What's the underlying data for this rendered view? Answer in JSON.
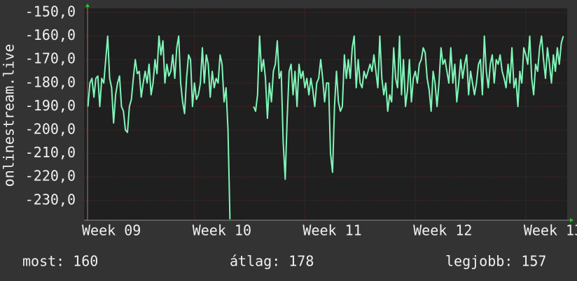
{
  "chart_data": {
    "type": "line",
    "y_label": "onlinestream.live",
    "x": [
      6,
      9,
      12,
      15,
      18,
      21,
      24,
      27,
      30,
      33,
      36,
      39,
      42,
      45,
      48,
      51,
      54,
      57,
      60,
      63,
      66,
      69,
      72,
      75,
      78,
      81,
      84,
      87,
      90,
      93,
      96,
      99,
      102,
      105,
      108,
      111,
      114,
      117,
      120,
      123,
      126,
      129,
      132,
      135,
      138,
      141,
      144,
      147,
      150,
      153,
      156,
      159,
      162,
      165,
      168,
      171,
      174,
      177,
      180,
      183,
      186,
      189,
      192,
      195,
      198,
      201,
      204,
      207,
      210,
      213,
      216,
      219,
      222,
      225,
      228,
      231,
      234,
      237,
      240,
      243,
      246,
      249,
      252,
      255,
      258,
      261,
      264,
      267,
      270,
      273,
      276,
      279,
      282,
      285,
      288,
      291,
      294,
      297,
      300,
      303,
      306,
      309,
      312,
      315,
      318,
      321,
      324,
      327,
      330,
      333,
      336,
      339,
      342,
      345,
      348,
      351,
      354,
      357,
      360,
      363,
      366,
      369,
      372,
      375,
      378,
      381,
      384,
      387,
      390,
      393,
      396,
      399,
      402,
      405,
      408,
      411,
      414,
      417,
      420,
      423,
      426,
      429,
      432,
      435,
      438,
      441,
      444,
      447,
      450,
      453,
      456,
      459,
      462,
      465,
      468,
      471,
      474,
      477,
      480,
      483,
      486,
      489,
      492,
      495,
      498,
      501,
      504,
      507,
      510,
      513,
      516,
      519,
      522,
      525,
      528,
      531,
      534,
      537,
      540,
      543,
      546,
      549,
      552,
      555,
      558,
      561,
      564,
      567,
      570,
      573,
      576,
      579,
      582,
      585,
      588,
      591,
      594,
      597,
      600,
      603,
      606,
      609,
      612,
      615,
      618,
      621,
      624,
      627,
      630,
      633,
      636,
      639,
      642,
      645,
      648,
      651,
      654,
      657,
      660,
      663,
      666,
      669,
      672,
      675,
      678,
      681,
      684,
      687,
      690,
      693,
      696,
      699,
      702,
      705,
      708,
      711,
      714,
      717,
      720,
      723,
      726,
      729
    ],
    "series": [
      {
        "name": "onlinestream.live",
        "color": "#80f5b8",
        "values": [
          -190,
          -180,
          -178,
          -186,
          -178,
          -177,
          -190,
          -178,
          -180,
          -170,
          -160,
          -178,
          -182,
          -197,
          -185,
          -180,
          -177,
          -190,
          -192,
          -200,
          -201,
          -190,
          -187,
          -178,
          -170,
          -176,
          -175,
          -186,
          -180,
          -175,
          -180,
          -172,
          -185,
          -180,
          -170,
          -176,
          -160,
          -168,
          -162,
          -180,
          -172,
          -177,
          -175,
          -168,
          -178,
          -165,
          -160,
          -180,
          -188,
          -193,
          -178,
          -168,
          -170,
          -190,
          -180,
          -187,
          -185,
          -180,
          -165,
          -180,
          -168,
          -172,
          -186,
          -175,
          -182,
          -178,
          -180,
          -168,
          -172,
          -188,
          -182,
          -200,
          -238,
          null,
          null,
          null,
          null,
          null,
          null,
          null,
          null,
          null,
          null,
          null,
          -190,
          -192,
          -185,
          -160,
          -175,
          -170,
          -178,
          -195,
          -180,
          -188,
          -175,
          -172,
          -162,
          -178,
          -175,
          -205,
          -221,
          -195,
          -175,
          -172,
          -185,
          -175,
          -190,
          -172,
          -178,
          -175,
          -182,
          -178,
          -185,
          -178,
          -183,
          -190,
          -180,
          -178,
          -170,
          -178,
          -188,
          -180,
          -180,
          -210,
          -218,
          -190,
          -175,
          -188,
          -192,
          -190,
          -168,
          -178,
          -170,
          -178,
          -165,
          -160,
          -182,
          -170,
          -180,
          -182,
          -175,
          -178,
          -175,
          -172,
          -175,
          -168,
          -175,
          -182,
          -160,
          -178,
          -185,
          -180,
          -192,
          -185,
          -188,
          -165,
          -178,
          -182,
          -160,
          -185,
          -170,
          -190,
          -183,
          -170,
          -188,
          -178,
          -175,
          -180,
          -172,
          -170,
          -165,
          -167,
          -178,
          -183,
          -192,
          -175,
          -180,
          -190,
          -180,
          -165,
          -172,
          -170,
          -175,
          -180,
          -165,
          -180,
          -172,
          -188,
          -180,
          -170,
          -178,
          -172,
          -168,
          -185,
          -175,
          -180,
          -185,
          -180,
          -172,
          -170,
          -185,
          -160,
          -175,
          -182,
          -172,
          -168,
          -180,
          -170,
          -172,
          -168,
          -175,
          -178,
          -182,
          -172,
          -180,
          -165,
          -182,
          -178,
          -190,
          -175,
          -180,
          -165,
          -168,
          -172,
          -160,
          -178,
          -185,
          -172,
          -175,
          -165,
          -160,
          -170,
          -178,
          -165,
          -172,
          -180,
          -168,
          -175,
          -165,
          -172,
          -163,
          -160
        ]
      }
    ],
    "xlim": [
      0,
      735
    ],
    "xticks": [
      {
        "value": 0,
        "label": "Week 09"
      },
      {
        "value": 168,
        "label": "Week 10"
      },
      {
        "value": 336,
        "label": "Week 11"
      },
      {
        "value": 504,
        "label": "Week 12"
      },
      {
        "value": 672,
        "label": "Week 13"
      }
    ],
    "ylim": [
      -238.4,
      -148.2
    ],
    "yticks": [
      {
        "value": -150,
        "label": "-150,0"
      },
      {
        "value": -160,
        "label": "-160,0"
      },
      {
        "value": -170,
        "label": "-170,0"
      },
      {
        "value": -180,
        "label": "-180,0"
      },
      {
        "value": -190,
        "label": "-190,0"
      },
      {
        "value": -200,
        "label": "-200,0"
      },
      {
        "value": -210,
        "label": "-210,0"
      },
      {
        "value": -220,
        "label": "-220,0"
      },
      {
        "value": -230,
        "label": "-230,0"
      }
    ],
    "grid": true,
    "footer": [
      {
        "label": "most:",
        "value": 160
      },
      {
        "label": "átlag:",
        "value": 178
      },
      {
        "label": "legjobb:",
        "value": 157
      }
    ]
  }
}
